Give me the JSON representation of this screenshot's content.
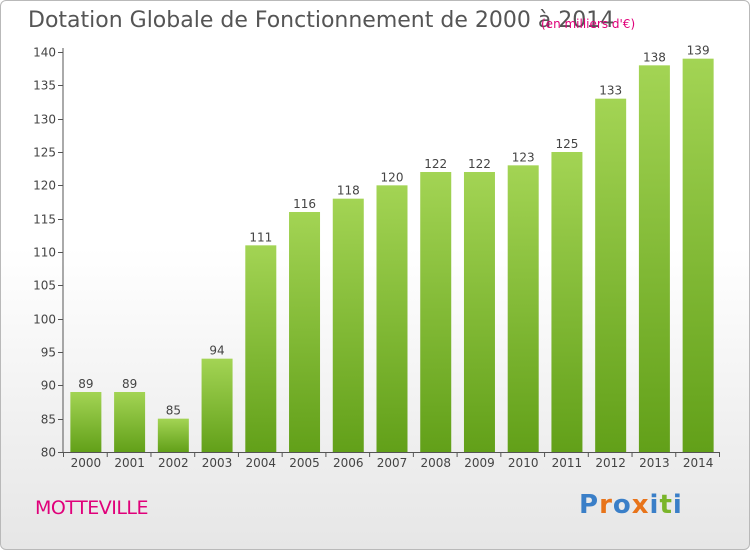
{
  "title": "Dotation Globale de Fonctionnement de 2000 à 2014",
  "subtitle": "(en milliers d'€)",
  "commune": "MOTTEVILLE",
  "logo": {
    "text": "Proxiti",
    "letters": [
      "P",
      "r",
      "o",
      "x",
      "i",
      "t",
      "i"
    ],
    "colors": [
      "#3a7fc8",
      "#e8741a",
      "#3a7fc8",
      "#e8741a",
      "#3a7fc8",
      "#7ab52a",
      "#3a7fc8"
    ]
  },
  "chart_data": {
    "type": "bar",
    "categories": [
      "2000",
      "2001",
      "2002",
      "2003",
      "2004",
      "2005",
      "2006",
      "2007",
      "2008",
      "2009",
      "2010",
      "2011",
      "2012",
      "2013",
      "2014"
    ],
    "values": [
      89,
      89,
      85,
      94,
      111,
      116,
      118,
      120,
      122,
      122,
      123,
      125,
      133,
      138,
      139
    ],
    "data_labels": [
      "89",
      "89",
      "85",
      "94",
      "111",
      "116",
      "118",
      "120",
      "122",
      "122",
      "123",
      "125",
      "133",
      "138",
      "139"
    ],
    "yticks": [
      80,
      85,
      90,
      95,
      100,
      105,
      110,
      115,
      120,
      125,
      130,
      135,
      140
    ],
    "ylim": [
      80,
      140
    ],
    "grid": false,
    "bar_color_top": "#a3d454",
    "bar_color_bottom": "#62a019"
  }
}
